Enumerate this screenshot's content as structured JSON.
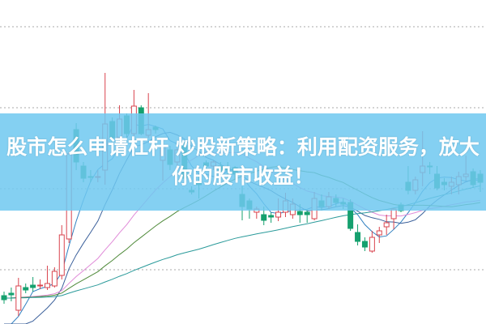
{
  "headline": "股市怎么申请杠杆 炒股新策略：利用配资服务，放大你的股市收益！",
  "colors": {
    "up": "#d9434d",
    "down": "#15a06e",
    "grid": "#aaaaaa",
    "banner": "#6ec8f0",
    "ma": [
      "#2f7fc0",
      "#3a5f9a",
      "#e08ad8",
      "#4f8a3a",
      "#2a9a9a"
    ]
  },
  "chart_data": {
    "type": "candlestick",
    "title": "",
    "xlabel": "",
    "ylabel": "",
    "ylim": [
      3.3,
      43.3
    ],
    "grid": true,
    "gridlines_y": [
      10,
      20,
      30,
      40
    ],
    "moving_averages": [
      5,
      10,
      20,
      30,
      60
    ],
    "ohlc": [
      [
        6.8,
        7.3,
        5.8,
        6.3
      ],
      [
        7.1,
        7.8,
        6.1,
        6.9
      ],
      [
        5.0,
        9.0,
        4.3,
        8.0
      ],
      [
        7.8,
        8.3,
        7.1,
        7.5
      ],
      [
        8.1,
        9.1,
        7.3,
        7.8
      ],
      [
        8.0,
        8.8,
        7.6,
        8.1
      ],
      [
        7.8,
        10.5,
        7.5,
        8.3
      ],
      [
        8.0,
        10.3,
        7.8,
        9.8
      ],
      [
        9.3,
        15.5,
        8.8,
        14.3
      ],
      [
        13.8,
        24.5,
        13.3,
        24.3
      ],
      [
        27.3,
        28.1,
        22.3,
        23.3
      ],
      [
        22.8,
        23.3,
        20.8,
        21.3
      ],
      [
        21.5,
        22.3,
        20.8,
        21.4
      ],
      [
        21.5,
        22.3,
        20.8,
        21.5
      ],
      [
        22.3,
        34.3,
        20.5,
        28.0
      ],
      [
        28.3,
        28.8,
        25.8,
        26.3
      ],
      [
        26.3,
        30.3,
        25.8,
        28.6
      ],
      [
        29.0,
        29.3,
        26.3,
        26.8
      ],
      [
        26.8,
        32.2,
        26.3,
        30.2
      ],
      [
        30.0,
        30.3,
        26.6,
        26.8
      ],
      [
        26.6,
        31.8,
        26.3,
        27.3
      ],
      [
        27.6,
        27.8,
        26.8,
        27.3
      ],
      [
        23.5,
        25.8,
        21.0,
        25.3
      ],
      [
        24.8,
        25.3,
        22.3,
        23.0
      ],
      [
        23.3,
        25.0,
        22.8,
        24.8
      ],
      [
        25.3,
        25.8,
        20.8,
        21.3
      ],
      [
        19.8,
        20.3,
        19.3,
        19.6
      ],
      [
        20.8,
        21.8,
        18.8,
        20.5
      ],
      [
        23.2,
        23.5,
        22.5,
        22.8
      ],
      [
        22.8,
        23.5,
        22.3,
        23.3
      ],
      [
        22.8,
        23.3,
        21.8,
        22.1
      ],
      [
        22.5,
        23.3,
        20.8,
        22.3
      ],
      [
        22.6,
        22.8,
        21.1,
        21.8
      ],
      [
        19.3,
        20.3,
        16.1,
        17.8
      ],
      [
        18.5,
        18.8,
        16.3,
        17.5
      ],
      [
        17.1,
        17.8,
        16.3,
        17.5
      ],
      [
        16.8,
        17.8,
        15.5,
        16.1
      ],
      [
        16.7,
        17.1,
        15.8,
        16.5
      ],
      [
        16.5,
        18.8,
        16.0,
        17.1
      ],
      [
        17.1,
        19.5,
        16.5,
        18.5
      ],
      [
        16.8,
        18.8,
        16.3,
        18.1
      ],
      [
        17.2,
        18.1,
        15.8,
        16.8
      ],
      [
        17.1,
        17.5,
        15.8,
        16.8
      ],
      [
        16.3,
        19.6,
        16.1,
        18.8
      ],
      [
        18.5,
        19.3,
        17.3,
        17.8
      ],
      [
        17.8,
        19.6,
        17.5,
        19.0
      ],
      [
        18.8,
        19.3,
        17.8,
        18.3
      ],
      [
        18.3,
        18.8,
        17.5,
        18.1
      ],
      [
        18.3,
        18.7,
        14.8,
        15.1
      ],
      [
        14.6,
        15.6,
        13.0,
        13.5
      ],
      [
        13.5,
        14.0,
        12.3,
        12.8
      ],
      [
        12.3,
        14.8,
        12.1,
        14.0
      ],
      [
        14.3,
        15.3,
        13.3,
        14.8
      ],
      [
        15.3,
        16.8,
        14.3,
        15.8
      ],
      [
        16.3,
        17.6,
        15.0,
        17.5
      ],
      [
        18.0,
        18.3,
        17.1,
        17.3
      ],
      [
        20.8,
        22.8,
        19.3,
        19.8
      ],
      [
        19.8,
        21.5,
        19.3,
        21.1
      ],
      [
        22.0,
        27.1,
        20.3,
        22.8
      ],
      [
        22.8,
        23.3,
        21.8,
        22.7
      ],
      [
        21.8,
        22.8,
        19.8,
        20.1
      ],
      [
        20.8,
        21.3,
        19.8,
        20.5
      ],
      [
        20.3,
        21.5,
        19.3,
        20.8
      ],
      [
        20.5,
        22.1,
        19.3,
        21.5
      ],
      [
        21.5,
        24.1,
        21.0,
        21.8
      ],
      [
        22.1,
        22.5,
        20.1,
        20.5
      ],
      [
        21.8,
        22.3,
        19.6,
        20.8
      ]
    ]
  }
}
